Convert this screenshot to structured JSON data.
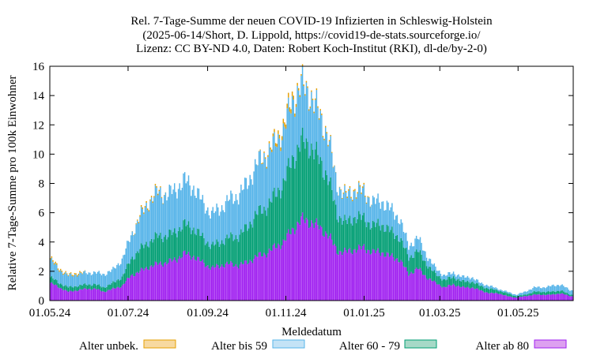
{
  "title_lines": [
    "Rel. 7-Tage-Summe der neuen COVID-19 Infizierten in Schleswig-Holstein",
    "(2025-06-14/Short, D. Lippold, https://covid19-de-stats.sourceforge.io/",
    "Lizenz: CC BY-ND 4.0, Daten: Robert Koch-Institut (RKI), dl-de/by-2-0)"
  ],
  "chart_data": {
    "type": "bar",
    "stacked": true,
    "title": "Rel. 7-Tage-Summe der neuen COVID-19 Infizierten in Schleswig-Holstein",
    "subtitle": "(2025-06-14/Short, D. Lippold, https://covid19-de-stats.sourceforge.io/ Lizenz: CC BY-ND 4.0, Daten: Robert Koch-Institut (RKI), dl-de/by-2-0)",
    "xlabel": "Meldedatum",
    "ylabel": "Relative 7-Tage-Summe pro 100k Einwohner",
    "ylim": [
      0,
      16
    ],
    "yticks": [
      "0",
      "2",
      "4",
      "6",
      "8",
      "10",
      "12",
      "14",
      "16"
    ],
    "xticks": [
      "01.05.24",
      "01.07.24",
      "01.09.24",
      "01.11.24",
      "01.01.25",
      "01.03.25",
      "01.05.25"
    ],
    "xrange": [
      "2024-05-01",
      "2025-06-13"
    ],
    "legend_position": "bottom",
    "series": [
      {
        "name": "Alter ab 80",
        "color": "#a020f0",
        "fill": "#dda0f0",
        "weekly_start": "2024-05-01",
        "values": [
          1.2,
          0.9,
          0.6,
          0.7,
          0.8,
          0.8,
          0.6,
          0.8,
          1.0,
          1.7,
          2.0,
          2.3,
          2.5,
          2.6,
          2.8,
          3.2,
          3.0,
          2.6,
          2.2,
          2.4,
          2.5,
          2.4,
          2.6,
          3.0,
          3.2,
          3.6,
          4.0,
          4.8,
          5.5,
          5.4,
          5.0,
          4.5,
          3.4,
          3.3,
          3.5,
          3.6,
          3.3,
          3.3,
          3.0,
          2.8,
          1.8,
          2.2,
          1.6,
          1.2,
          0.9,
          1.1,
          0.9,
          0.9,
          0.7,
          0.5,
          0.5,
          0.3,
          0.2,
          0.3,
          0.4,
          0.4,
          0.4,
          0.5,
          0.3
        ]
      },
      {
        "name": "Alter 60 - 79",
        "color": "#009e73",
        "fill": "#a6d9c7",
        "weekly_start": "2024-05-01",
        "values": [
          0.4,
          0.3,
          0.3,
          0.3,
          0.3,
          0.3,
          0.3,
          0.4,
          0.6,
          1.1,
          1.5,
          1.7,
          1.9,
          1.8,
          1.9,
          2.0,
          1.9,
          1.7,
          1.5,
          1.6,
          1.8,
          2.0,
          2.4,
          2.9,
          3.1,
          3.5,
          4.0,
          4.8,
          5.3,
          5.2,
          4.6,
          3.9,
          2.5,
          2.0,
          2.2,
          2.0,
          1.8,
          1.9,
          1.7,
          1.5,
          1.1,
          1.2,
          0.9,
          0.6,
          0.5,
          0.5,
          0.4,
          0.4,
          0.3,
          0.3,
          0.2,
          0.2,
          0.1,
          0.1,
          0.2,
          0.2,
          0.2,
          0.2,
          0.1
        ]
      },
      {
        "name": "Alter bis 59",
        "color": "#56b4e9",
        "fill": "#c4e3f6",
        "weekly_start": "2024-05-01",
        "values": [
          1.2,
          0.9,
          0.8,
          0.8,
          0.8,
          0.8,
          0.9,
          0.9,
          1.2,
          1.6,
          2.2,
          2.7,
          3.0,
          2.8,
          2.9,
          3.0,
          2.8,
          2.4,
          2.2,
          2.3,
          2.6,
          2.8,
          3.0,
          3.4,
          3.6,
          3.5,
          3.6,
          3.9,
          3.9,
          3.5,
          3.1,
          2.8,
          2.0,
          1.8,
          1.8,
          1.8,
          1.6,
          1.6,
          1.5,
          1.3,
          0.8,
          0.9,
          0.6,
          0.4,
          0.3,
          0.3,
          0.3,
          0.3,
          0.2,
          0.2,
          0.1,
          0.1,
          0.1,
          0.2,
          0.3,
          0.3,
          0.4,
          0.4,
          0.3
        ]
      },
      {
        "name": "Alter unbek.",
        "color": "#e69f00",
        "fill": "#f7d9a0",
        "weekly_start": "2024-05-01",
        "values": [
          0.1,
          0.1,
          0.05,
          0.1,
          0,
          0,
          0,
          0,
          0,
          0,
          0.1,
          0.1,
          0.1,
          0,
          0,
          0,
          0,
          0,
          0,
          0,
          0,
          0,
          0,
          0,
          0.1,
          0.2,
          0.3,
          0.3,
          0.1,
          0.1,
          0.1,
          0.1,
          0,
          0.1,
          0.1,
          0.1,
          0,
          0,
          0,
          0,
          0,
          0,
          0,
          0,
          0,
          0,
          0,
          0,
          0,
          0,
          0,
          0,
          0,
          0,
          0,
          0,
          0,
          0,
          0
        ]
      }
    ]
  }
}
